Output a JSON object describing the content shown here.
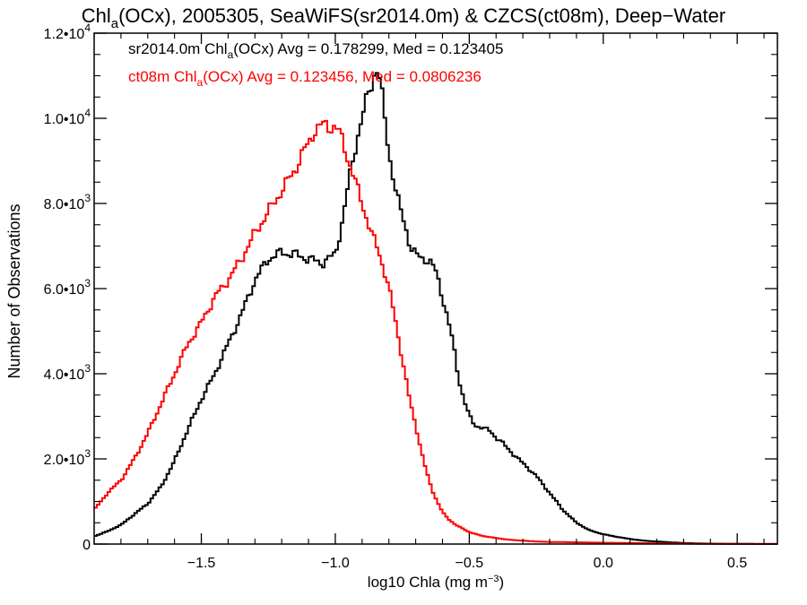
{
  "chart_data": {
    "type": "line",
    "title": {
      "parts": [
        {
          "t": "Chl",
          "sub": false
        },
        {
          "t": "a",
          "sub": true
        },
        {
          "t": "(OCx), 2005305, SeaWiFS(sr2014.0m) & CZCS(ct08m), Deep−Water",
          "sub": false
        }
      ]
    },
    "xlabel": {
      "parts": [
        {
          "t": "log10 Chla (mg m",
          "sup": false
        },
        {
          "t": "−3",
          "sup": true
        },
        {
          "t": ")",
          "sup": false
        }
      ]
    },
    "ylabel": "Number of Observations",
    "xlim": [
      -1.9,
      0.65
    ],
    "ylim": [
      0,
      12000
    ],
    "xticks": [
      {
        "v": -1.5,
        "label": "−1.5"
      },
      {
        "v": -1.0,
        "label": "−1.0"
      },
      {
        "v": -0.5,
        "label": "−0.5"
      },
      {
        "v": 0.0,
        "label": "0.0"
      },
      {
        "v": 0.5,
        "label": "0.5"
      }
    ],
    "yticks": [
      {
        "v": 0,
        "mant": "0",
        "exp": ""
      },
      {
        "v": 2000,
        "mant": "2.0•10",
        "exp": "3"
      },
      {
        "v": 4000,
        "mant": "4.0•10",
        "exp": "3"
      },
      {
        "v": 6000,
        "mant": "6.0•10",
        "exp": "3"
      },
      {
        "v": 8000,
        "mant": "8.0•10",
        "exp": "3"
      },
      {
        "v": 10000,
        "mant": "1.0•10",
        "exp": "4"
      },
      {
        "v": 12000,
        "mant": "1.2•10",
        "exp": "4"
      }
    ],
    "legend": [
      {
        "color": "#000000",
        "parts": [
          {
            "t": "sr2014.0m Chl",
            "sub": false
          },
          {
            "t": "a",
            "sub": true
          },
          {
            "t": "(OCx) Avg = 0.178299, Med = 0.123405",
            "sub": false
          }
        ]
      },
      {
        "color": "#ff0000",
        "parts": [
          {
            "t": "ct08m Chl",
            "sub": false
          },
          {
            "t": "a",
            "sub": true
          },
          {
            "t": "(OCx) Avg = 0.123456, Med = 0.0806236",
            "sub": false
          }
        ]
      }
    ],
    "series": [
      {
        "color": "#000000",
        "x": [
          -1.9,
          -1.85,
          -1.8,
          -1.75,
          -1.7,
          -1.65,
          -1.6,
          -1.55,
          -1.5,
          -1.45,
          -1.4,
          -1.35,
          -1.3,
          -1.25,
          -1.2,
          -1.15,
          -1.1,
          -1.05,
          -1.0,
          -0.97,
          -0.95,
          -0.92,
          -0.9,
          -0.88,
          -0.86,
          -0.85,
          -0.84,
          -0.83,
          -0.82,
          -0.8,
          -0.78,
          -0.76,
          -0.74,
          -0.72,
          -0.7,
          -0.68,
          -0.66,
          -0.64,
          -0.62,
          -0.6,
          -0.58,
          -0.56,
          -0.54,
          -0.52,
          -0.5,
          -0.48,
          -0.46,
          -0.44,
          -0.42,
          -0.4,
          -0.38,
          -0.35,
          -0.3,
          -0.25,
          -0.2,
          -0.15,
          -0.1,
          -0.05,
          0.0,
          0.05,
          0.1,
          0.15,
          0.2,
          0.25,
          0.3,
          0.35,
          0.4,
          0.5,
          0.6,
          0.65
        ],
        "y": [
          180,
          300,
          450,
          700,
          950,
          1350,
          1950,
          2700,
          3400,
          4000,
          4700,
          5400,
          6200,
          6700,
          6850,
          6800,
          6700,
          6600,
          6800,
          7700,
          8500,
          9500,
          10000,
          10500,
          10900,
          11200,
          11100,
          10800,
          10200,
          9200,
          8500,
          7900,
          7500,
          7000,
          6800,
          6700,
          6700,
          6600,
          6300,
          5800,
          5300,
          4700,
          3900,
          3400,
          3000,
          2800,
          2750,
          2700,
          2650,
          2500,
          2400,
          2200,
          1900,
          1600,
          1200,
          800,
          500,
          320,
          230,
          170,
          120,
          80,
          60,
          40,
          25,
          15,
          10,
          5,
          2,
          1
        ]
      },
      {
        "color": "#ff0000",
        "x": [
          -1.9,
          -1.85,
          -1.8,
          -1.75,
          -1.7,
          -1.65,
          -1.6,
          -1.55,
          -1.5,
          -1.45,
          -1.4,
          -1.35,
          -1.3,
          -1.25,
          -1.2,
          -1.15,
          -1.12,
          -1.1,
          -1.08,
          -1.06,
          -1.04,
          -1.02,
          -1.0,
          -0.98,
          -0.96,
          -0.94,
          -0.92,
          -0.9,
          -0.88,
          -0.86,
          -0.84,
          -0.82,
          -0.8,
          -0.78,
          -0.76,
          -0.74,
          -0.72,
          -0.7,
          -0.68,
          -0.66,
          -0.64,
          -0.62,
          -0.6,
          -0.58,
          -0.55,
          -0.5,
          -0.45,
          -0.4,
          -0.35,
          -0.3,
          -0.25,
          -0.2,
          -0.15,
          -0.1,
          -0.05,
          0.0,
          0.1,
          0.2,
          0.3,
          0.4,
          0.5,
          0.6,
          0.65
        ],
        "y": [
          800,
          1200,
          1500,
          2000,
          2600,
          3300,
          4000,
          4700,
          5200,
          5800,
          6200,
          6700,
          7300,
          7800,
          8300,
          8800,
          9200,
          9400,
          9700,
          9800,
          9850,
          9800,
          9800,
          9600,
          9200,
          8800,
          8400,
          8000,
          7600,
          7200,
          6900,
          6500,
          6000,
          5400,
          4700,
          4000,
          3300,
          2800,
          2200,
          1700,
          1300,
          1000,
          750,
          600,
          450,
          280,
          190,
          140,
          100,
          80,
          60,
          50,
          45,
          40,
          35,
          30,
          25,
          15,
          10,
          5,
          3,
          2,
          1
        ]
      }
    ]
  }
}
